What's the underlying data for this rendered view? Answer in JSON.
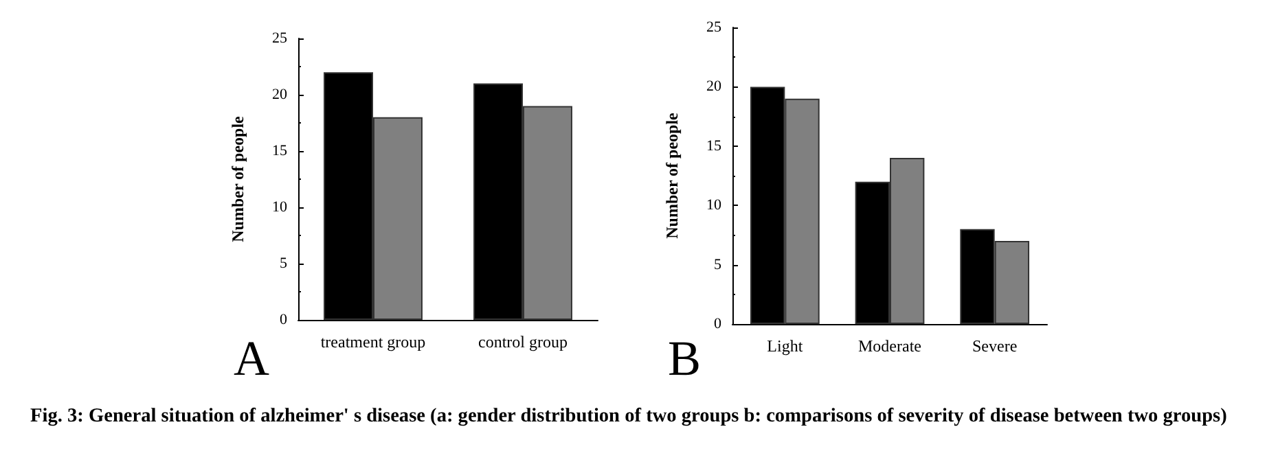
{
  "chart_data": [
    {
      "type": "bar",
      "ylabel": "Number of people",
      "categories": [
        "treatment group",
        "control group"
      ],
      "series": [
        {
          "color": "#000000",
          "values": [
            22,
            21
          ]
        },
        {
          "color": "#808080",
          "values": [
            18,
            19
          ]
        }
      ],
      "ylim": [
        0,
        25
      ],
      "yticks": [
        0,
        5,
        10,
        15,
        20,
        25
      ],
      "grid": false,
      "annotations": [
        "A",
        "Fig. 3: General situation of alzheimer' s disease (a: gender distribution of two groups b: comparisons of severity of disease between two groups)"
      ]
    },
    {
      "type": "bar",
      "ylabel": "Number of people",
      "categories": [
        "Light",
        "Moderate",
        "Severe"
      ],
      "series": [
        {
          "color": "#000000",
          "values": [
            20,
            12,
            8
          ]
        },
        {
          "color": "#808080",
          "values": [
            19,
            14,
            7
          ]
        }
      ],
      "ylim": [
        0,
        25
      ],
      "yticks": [
        0,
        5,
        10,
        15,
        20,
        25
      ],
      "grid": false,
      "annotations": [
        "B"
      ]
    }
  ]
}
